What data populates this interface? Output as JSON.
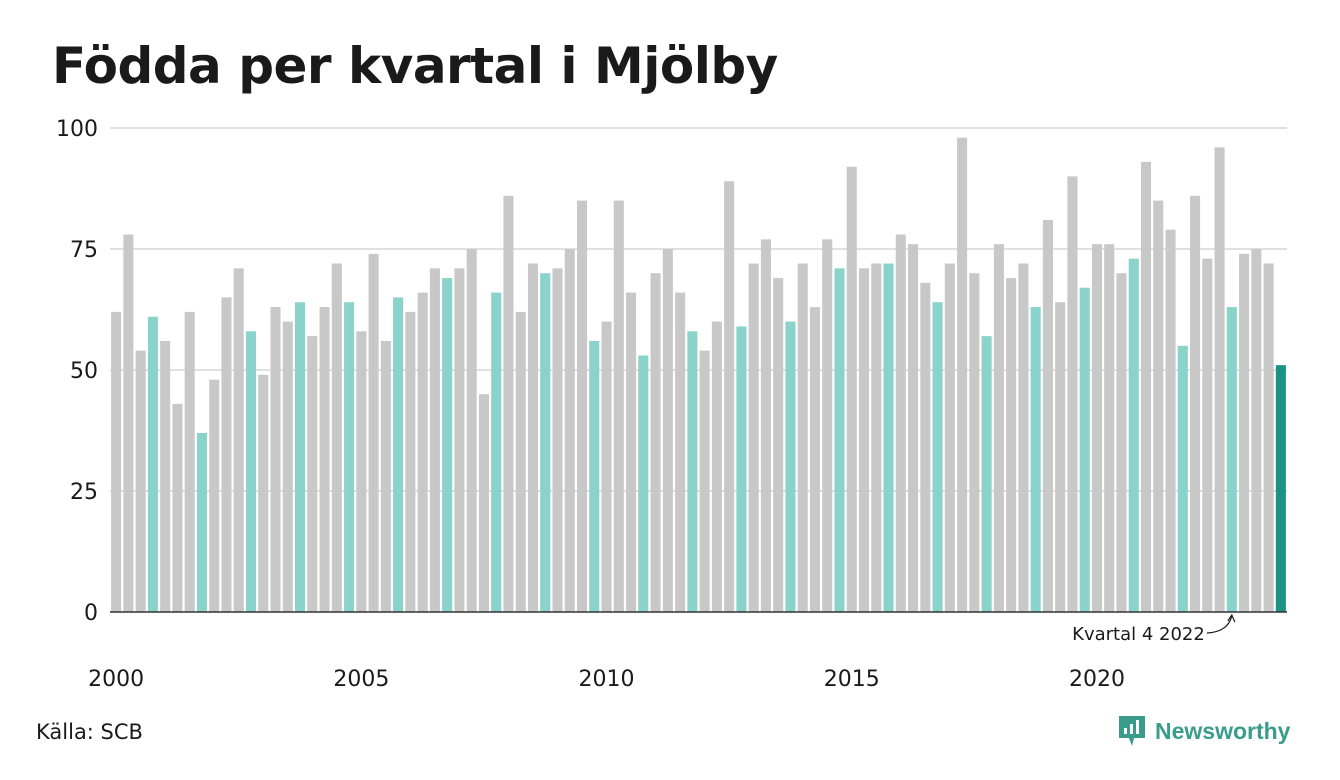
{
  "title": "Födda per kvartal i Mjölby",
  "source": "Källa: SCB",
  "brand": "Newsworthy",
  "colors": {
    "bar_default": "#c8c8c8",
    "bar_same_quarter": "#89d3cb",
    "bar_latest": "#1a9384",
    "grid": "#e0e0e0",
    "baseline": "#333333",
    "brand": "#3a9c8a"
  },
  "chart_data": {
    "type": "bar",
    "title": "Födda per kvartal i Mjölby",
    "xlabel": "",
    "ylabel": "",
    "ylim": [
      0,
      100
    ],
    "yticks": [
      0,
      25,
      50,
      75,
      100
    ],
    "xtick_labels": [
      "2000",
      "2005",
      "2010",
      "2015",
      "2020"
    ],
    "grid": true,
    "start_year": 2000,
    "start_quarter": 1,
    "highlight_quarter": 4,
    "annotation": {
      "text": "Kvartal 4 2022",
      "target": "2022 Q4"
    },
    "values": [
      62,
      78,
      54,
      61,
      56,
      43,
      62,
      37,
      48,
      65,
      71,
      58,
      49,
      63,
      60,
      64,
      57,
      63,
      72,
      64,
      58,
      74,
      56,
      65,
      62,
      66,
      71,
      69,
      71,
      75,
      45,
      66,
      86,
      62,
      72,
      70,
      71,
      75,
      85,
      56,
      60,
      85,
      66,
      53,
      70,
      75,
      66,
      58,
      54,
      60,
      89,
      59,
      72,
      77,
      69,
      60,
      72,
      63,
      77,
      71,
      92,
      71,
      72,
      72,
      78,
      76,
      68,
      64,
      72,
      98,
      70,
      57,
      76,
      69,
      72,
      63,
      81,
      64,
      90,
      67,
      76,
      76,
      70,
      73,
      93,
      85,
      79,
      55,
      86,
      73,
      96,
      63,
      74,
      75,
      72,
      51
    ]
  }
}
